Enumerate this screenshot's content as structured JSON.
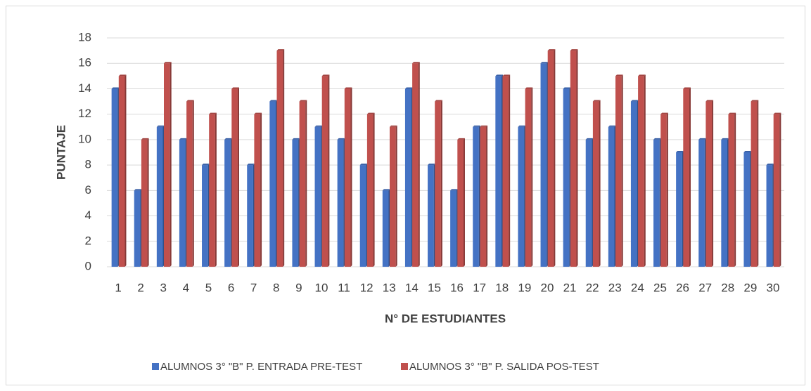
{
  "chart_data": {
    "type": "bar",
    "x_label": "N° DE ESTUDIANTES",
    "y_label": "PUNTAJE",
    "categories": [
      "1",
      "2",
      "3",
      "4",
      "5",
      "6",
      "7",
      "8",
      "9",
      "10",
      "11",
      "12",
      "13",
      "14",
      "15",
      "16",
      "17",
      "18",
      "19",
      "20",
      "21",
      "22",
      "23",
      "24",
      "25",
      "26",
      "27",
      "28",
      "29",
      "30"
    ],
    "series": [
      {
        "name": "ALUMNOS 3° \"B\" P. ENTRADA PRE-TEST",
        "color": "#4472c4",
        "values": [
          14,
          6,
          11,
          10,
          8,
          10,
          8,
          13,
          10,
          11,
          10,
          8,
          6,
          14,
          8,
          6,
          11,
          15,
          11,
          16,
          14,
          10,
          11,
          13,
          10,
          9,
          10,
          10,
          9,
          8
        ]
      },
      {
        "name": "ALUMNOS 3° \"B\" P. SALIDA POS-TEST",
        "color": "#c0504d",
        "values": [
          15,
          10,
          16,
          13,
          12,
          14,
          12,
          17,
          13,
          15,
          14,
          12,
          11,
          16,
          13,
          10,
          11,
          15,
          14,
          17,
          17,
          13,
          15,
          15,
          12,
          14,
          13,
          12,
          13,
          12
        ]
      }
    ],
    "ylim": [
      0,
      18
    ],
    "yticks": [
      0,
      2,
      4,
      6,
      8,
      10,
      12,
      14,
      16,
      18
    ],
    "grid": true,
    "legend": "bottom"
  }
}
